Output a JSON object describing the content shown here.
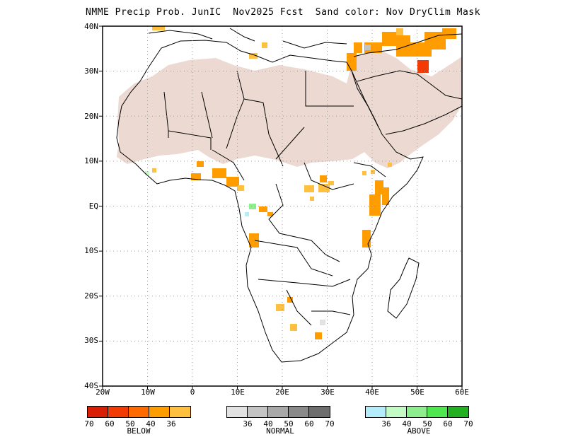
{
  "title": "NMME Precip Prob. JunIC  Nov2025 Fcst  Sand color: Nov DryClim Mask",
  "axes": {
    "lon_labels": [
      "20W",
      "10W",
      "0",
      "10E",
      "20E",
      "30E",
      "40E",
      "50E",
      "60E"
    ],
    "lat_labels": [
      "40N",
      "30N",
      "20N",
      "10N",
      "EQ",
      "10S",
      "20S",
      "30S",
      "40S"
    ],
    "lon_range": [
      -20,
      60
    ],
    "lat_range": [
      -40,
      40
    ],
    "grid": "dotted"
  },
  "colors": {
    "sand_mask": "#ecd9d1",
    "below": [
      "#d81e05",
      "#f23a05",
      "#ff6a00",
      "#ff9c00",
      "#ffc040"
    ],
    "normal": [
      "#e2e2e2",
      "#c4c4c4",
      "#a8a8a8",
      "#8a8a8a",
      "#6e6e6e"
    ],
    "above": [
      "#b4ecfa",
      "#c4fac4",
      "#8eee8e",
      "#50e650",
      "#22b022"
    ]
  },
  "legend": {
    "below": {
      "caption": "BELOW",
      "ticks": [
        "70",
        "60",
        "50",
        "40",
        "36"
      ]
    },
    "normal": {
      "caption": "NORMAL",
      "ticks": [
        "36",
        "40",
        "50",
        "60",
        "70"
      ]
    },
    "above": {
      "caption": "ABOVE",
      "ticks": [
        "36",
        "40",
        "50",
        "60",
        "70"
      ]
    }
  }
}
